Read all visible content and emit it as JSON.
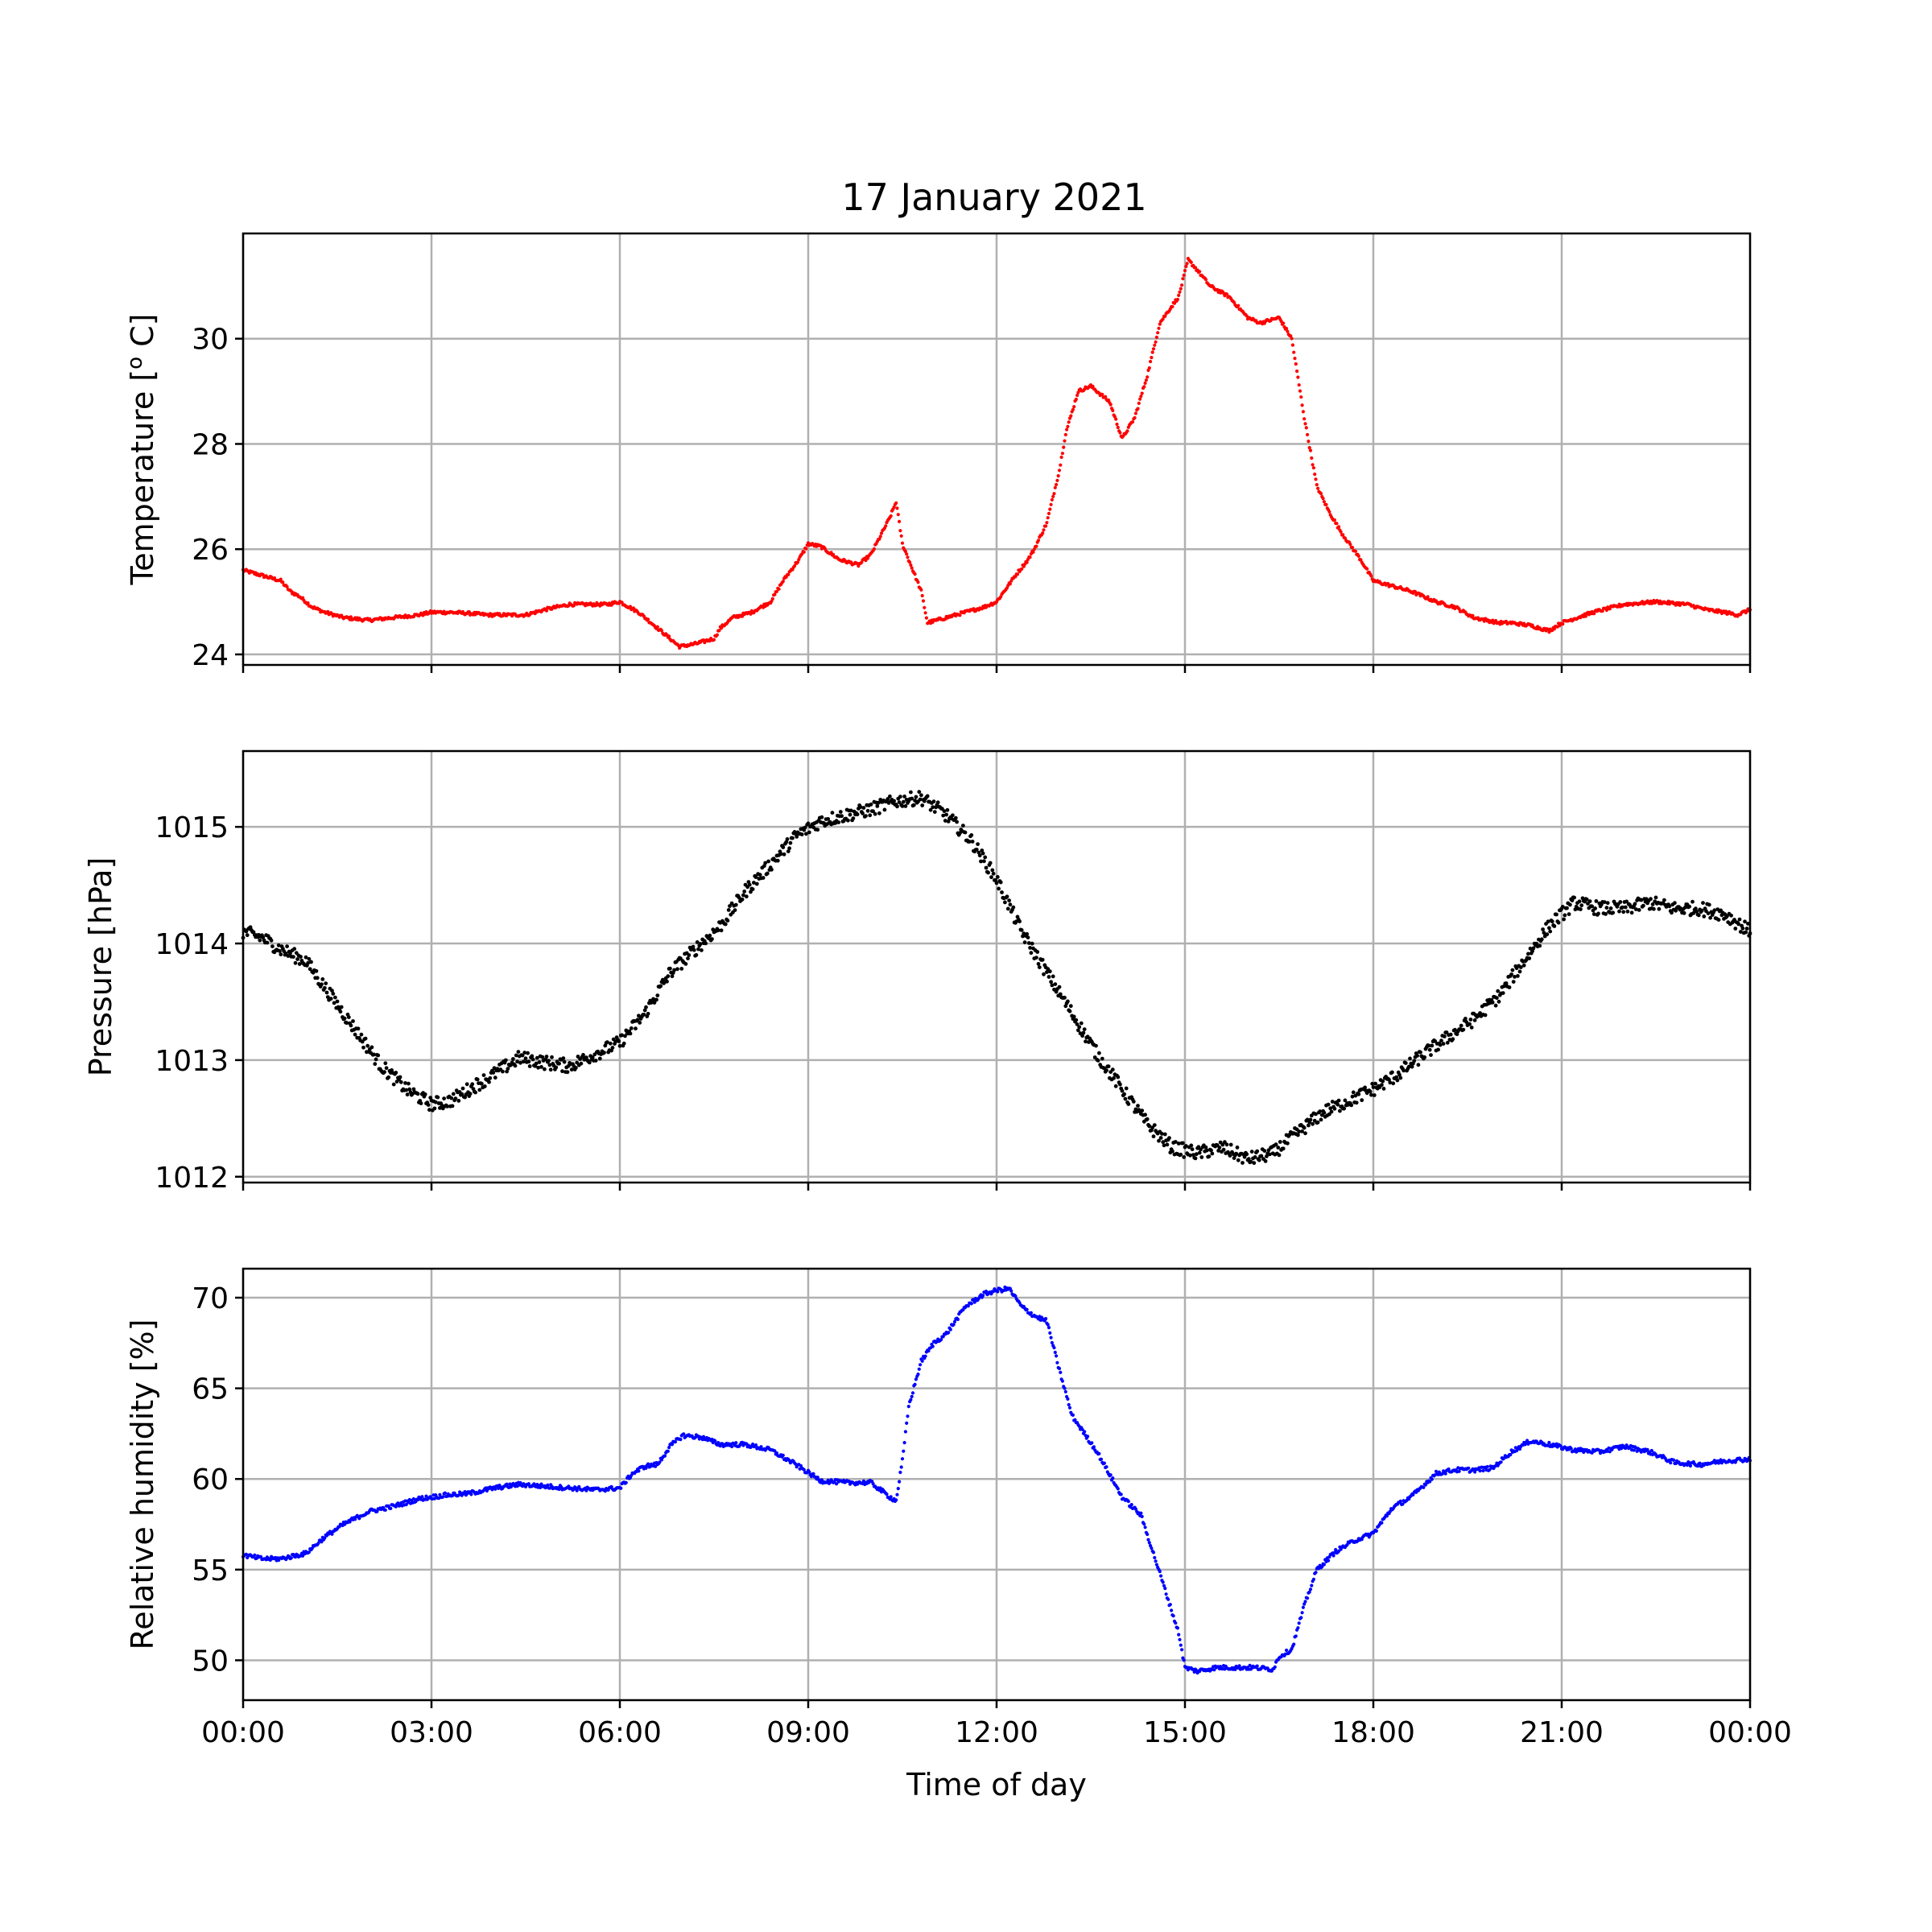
{
  "title": "17 January 2021",
  "colors": {
    "temperature": "#ff0000",
    "pressure": "#000000",
    "humidity": "#0000ff",
    "grid": "#b0b0b0"
  },
  "chart_data": [
    {
      "type": "scatter",
      "ylabel": "Temperature [° C]",
      "ylabel_main": "Temperature [",
      "ylabel_sup": "o",
      "ylabel_tail": " C]",
      "xlim": [
        0,
        24
      ],
      "ylim": [
        23.8,
        32
      ],
      "yticks": [
        24,
        26,
        28,
        30
      ],
      "ytick_labels": [
        "24",
        "26",
        "28",
        "30"
      ],
      "grid": true,
      "color": "#ff0000",
      "series": [
        {
          "x": [
            0,
            0.3,
            0.6,
            0.75,
            0.9,
            1.1,
            1.3,
            1.6,
            2.0,
            2.4,
            2.8,
            3.0,
            3.3,
            3.6,
            3.9,
            4.2,
            4.5,
            4.8,
            5.0,
            5.2,
            5.5,
            5.8,
            6.0,
            6.3,
            6.6,
            6.8,
            6.95,
            7.2,
            7.5,
            7.6,
            7.8,
            8.1,
            8.4,
            8.6,
            8.85,
            9.0,
            9.2,
            9.5,
            9.8,
            10.0,
            10.3,
            10.4,
            10.5,
            10.7,
            10.8,
            10.9,
            11.2,
            11.5,
            11.8,
            12.0,
            12.3,
            12.5,
            12.6,
            12.8,
            13.0,
            13.1,
            13.3,
            13.5,
            13.8,
            14.0,
            14.2,
            14.4,
            14.6,
            14.9,
            15.05,
            15.2,
            15.4,
            15.7,
            16.0,
            16.2,
            16.5,
            16.7,
            16.9,
            17.1,
            17.3,
            17.5,
            17.8,
            18.0,
            18.3,
            18.6,
            19.0,
            19.3,
            19.6,
            20.0,
            20.2,
            20.5,
            20.8,
            21.0,
            21.5,
            22.0,
            22.5,
            23.0,
            23.3,
            23.6,
            23.8,
            24.0
          ],
          "y": [
            25.6,
            25.5,
            25.4,
            25.2,
            25.1,
            24.9,
            24.8,
            24.7,
            24.65,
            24.7,
            24.75,
            24.8,
            24.8,
            24.78,
            24.75,
            24.75,
            24.75,
            24.85,
            24.9,
            24.95,
            24.95,
            24.95,
            25.0,
            24.8,
            24.5,
            24.3,
            24.15,
            24.2,
            24.3,
            24.5,
            24.7,
            24.8,
            25.0,
            25.4,
            25.8,
            26.1,
            26.05,
            25.8,
            25.7,
            25.9,
            26.6,
            26.9,
            26.1,
            25.5,
            25.2,
            24.6,
            24.7,
            24.8,
            24.9,
            25.0,
            25.5,
            25.8,
            26.0,
            26.5,
            27.5,
            28.2,
            29.0,
            29.1,
            28.8,
            28.1,
            28.5,
            29.3,
            30.3,
            30.8,
            31.5,
            31.3,
            31.0,
            30.8,
            30.4,
            30.3,
            30.4,
            30.0,
            28.5,
            27.2,
            26.7,
            26.3,
            25.8,
            25.4,
            25.3,
            25.2,
            25.0,
            24.9,
            24.7,
            24.6,
            24.6,
            24.55,
            24.45,
            24.6,
            24.8,
            24.95,
            25.0,
            24.95,
            24.85,
            24.8,
            24.75,
            24.85
          ]
        }
      ]
    },
    {
      "type": "scatter",
      "ylabel": "Pressure [hPa]",
      "xlim": [
        0,
        24
      ],
      "ylim": [
        1011.95,
        1015.65
      ],
      "yticks": [
        1012,
        1013,
        1014,
        1015
      ],
      "ytick_labels": [
        "1012",
        "1013",
        "1014",
        "1015"
      ],
      "grid": true,
      "color": "#000000",
      "series": [
        {
          "x": [
            0,
            0.3,
            0.6,
            1.0,
            1.4,
            1.8,
            2.2,
            2.6,
            3.0,
            3.3,
            3.6,
            4.0,
            4.4,
            4.8,
            5.2,
            5.6,
            6.0,
            6.4,
            6.8,
            7.2,
            7.6,
            8.0,
            8.4,
            8.8,
            9.2,
            9.6,
            10.0,
            10.4,
            10.8,
            11.2,
            11.6,
            12.0,
            12.4,
            12.8,
            13.2,
            13.6,
            14.0,
            14.4,
            14.8,
            15.2,
            15.6,
            16.0,
            16.4,
            16.8,
            17.2,
            17.6,
            18.0,
            18.4,
            18.8,
            19.2,
            19.6,
            20.0,
            20.4,
            20.8,
            21.2,
            21.6,
            22.0,
            22.4,
            22.8,
            23.2,
            23.6,
            24.0
          ],
          "y": [
            1014.1,
            1014.05,
            1013.95,
            1013.85,
            1013.55,
            1013.25,
            1012.95,
            1012.75,
            1012.62,
            1012.65,
            1012.75,
            1012.88,
            1013.02,
            1012.98,
            1012.95,
            1013.05,
            1013.15,
            1013.4,
            1013.75,
            1013.95,
            1014.15,
            1014.45,
            1014.68,
            1014.92,
            1015.05,
            1015.1,
            1015.15,
            1015.22,
            1015.25,
            1015.1,
            1014.88,
            1014.55,
            1014.1,
            1013.75,
            1013.4,
            1013.05,
            1012.75,
            1012.45,
            1012.25,
            1012.2,
            1012.25,
            1012.15,
            1012.2,
            1012.38,
            1012.55,
            1012.65,
            1012.75,
            1012.88,
            1013.05,
            1013.2,
            1013.35,
            1013.55,
            1013.85,
            1014.15,
            1014.35,
            1014.3,
            1014.3,
            1014.35,
            1014.3,
            1014.3,
            1014.25,
            1014.1
          ]
        }
      ]
    },
    {
      "type": "scatter",
      "ylabel": "Relative humidity [%]",
      "xlabel": "Time of day",
      "xlim": [
        0,
        24
      ],
      "ylim": [
        47.8,
        71.6
      ],
      "yticks": [
        50,
        55,
        60,
        65,
        70
      ],
      "ytick_labels": [
        "50",
        "55",
        "60",
        "65",
        "70"
      ],
      "xticks": [
        0,
        3,
        6,
        9,
        12,
        15,
        18,
        21,
        24
      ],
      "xtick_labels": [
        "00:00",
        "03:00",
        "06:00",
        "09:00",
        "12:00",
        "15:00",
        "18:00",
        "21:00",
        "00:00"
      ],
      "grid": true,
      "color": "#0000ff",
      "series": [
        {
          "x": [
            0,
            0.3,
            0.6,
            1.0,
            1.3,
            1.6,
            2.0,
            2.4,
            2.8,
            3.2,
            3.6,
            4.0,
            4.4,
            4.8,
            5.2,
            5.6,
            6.0,
            6.2,
            6.4,
            6.6,
            6.8,
            7.0,
            7.3,
            7.6,
            8.0,
            8.4,
            8.8,
            9.2,
            9.6,
            10.0,
            10.3,
            10.4,
            10.5,
            10.6,
            10.8,
            11.0,
            11.2,
            11.5,
            11.8,
            12.0,
            12.2,
            12.4,
            12.6,
            12.8,
            13.0,
            13.2,
            13.6,
            14.0,
            14.3,
            14.6,
            14.9,
            15.0,
            15.2,
            15.5,
            15.8,
            16.1,
            16.4,
            16.5,
            16.7,
            16.9,
            17.1,
            17.4,
            17.7,
            18.0,
            18.3,
            18.6,
            19.0,
            19.3,
            19.6,
            19.9,
            20.2,
            20.5,
            20.8,
            21.2,
            21.6,
            22.0,
            22.4,
            22.8,
            23.2,
            23.6,
            24.0
          ],
          "y": [
            55.8,
            55.6,
            55.6,
            55.9,
            56.8,
            57.5,
            58.2,
            58.5,
            58.9,
            59.1,
            59.2,
            59.5,
            59.7,
            59.6,
            59.5,
            59.4,
            59.5,
            60.3,
            60.7,
            60.8,
            61.8,
            62.4,
            62.3,
            61.9,
            61.9,
            61.6,
            60.8,
            59.9,
            59.8,
            59.8,
            59.0,
            58.8,
            61.0,
            64.0,
            66.5,
            67.5,
            68.0,
            69.5,
            70.2,
            70.4,
            70.5,
            69.5,
            69.0,
            68.7,
            66.0,
            63.5,
            61.5,
            59.0,
            58.0,
            54.8,
            51.5,
            49.6,
            49.4,
            49.6,
            49.6,
            49.6,
            49.5,
            50.2,
            50.6,
            53.0,
            55.0,
            56.0,
            56.6,
            57.0,
            58.4,
            59.0,
            60.3,
            60.5,
            60.5,
            60.6,
            61.5,
            62.1,
            61.9,
            61.6,
            61.5,
            61.8,
            61.5,
            60.9,
            60.8,
            61.0,
            61.1
          ]
        }
      ]
    }
  ]
}
